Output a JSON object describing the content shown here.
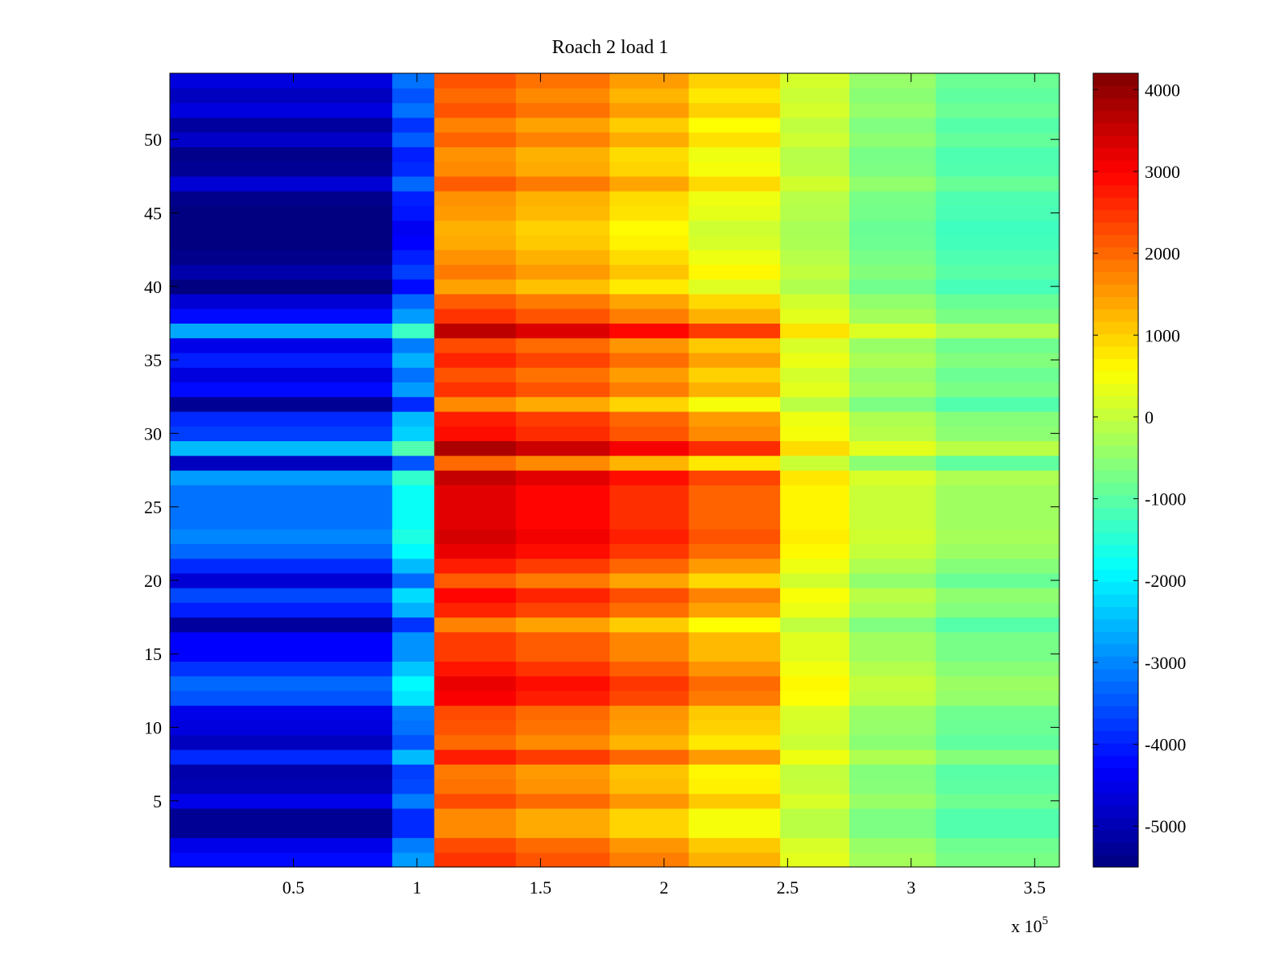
{
  "chart_data": {
    "type": "heatmap",
    "title": "Roach 2 load 1",
    "xlabel": "",
    "ylabel": "",
    "x_axis": {
      "range": [
        0,
        360000
      ],
      "ticks": [
        50000,
        100000,
        150000,
        200000,
        250000,
        300000,
        350000
      ],
      "tick_labels": [
        "0.5",
        "1",
        "1.5",
        "2",
        "2.5",
        "3",
        "3.5"
      ],
      "multiplier_label": "x 10",
      "multiplier_exponent": "5"
    },
    "y_axis": {
      "range": [
        0.5,
        54.5
      ],
      "ticks": [
        5,
        10,
        15,
        20,
        25,
        30,
        35,
        40,
        45,
        50
      ],
      "tick_labels": [
        "5",
        "10",
        "15",
        "20",
        "25",
        "30",
        "35",
        "40",
        "45",
        "50"
      ]
    },
    "colorbar": {
      "colormap": "jet",
      "range": [
        -5500,
        4200
      ],
      "ticks": [
        4000,
        3000,
        2000,
        1000,
        0,
        -1000,
        -2000,
        -3000,
        -4000,
        -5000
      ],
      "tick_labels": [
        "4000",
        "3000",
        "2000",
        "1000",
        "0",
        "-1000",
        "-2000",
        "-3000",
        "-4000",
        "-5000"
      ]
    },
    "x_segments": [
      {
        "x_start": 0,
        "x_end": 90000,
        "value": -4200
      },
      {
        "x_start": 90000,
        "x_end": 107000,
        "value": -2800
      },
      {
        "x_start": 107000,
        "x_end": 140000,
        "value": 2500
      },
      {
        "x_start": 140000,
        "x_end": 178000,
        "value": 2200
      },
      {
        "x_start": 178000,
        "x_end": 210000,
        "value": 1800
      },
      {
        "x_start": 210000,
        "x_end": 247000,
        "value": 1300
      },
      {
        "x_start": 247000,
        "x_end": 275000,
        "value": 300
      },
      {
        "x_start": 275000,
        "x_end": 310000,
        "value": -300
      },
      {
        "x_start": 310000,
        "x_end": 360000,
        "value": -700
      }
    ],
    "rows": [
      {
        "channel": 1,
        "offset": 0
      },
      {
        "channel": 2,
        "offset": -300
      },
      {
        "channel": 3,
        "offset": -1100
      },
      {
        "channel": 4,
        "offset": -1100
      },
      {
        "channel": 5,
        "offset": -300
      },
      {
        "channel": 6,
        "offset": -800
      },
      {
        "channel": 7,
        "offset": -900
      },
      {
        "channel": 8,
        "offset": 300
      },
      {
        "channel": 9,
        "offset": -700
      },
      {
        "channel": 10,
        "offset": -400
      },
      {
        "channel": 11,
        "offset": -300
      },
      {
        "channel": 12,
        "offset": 700
      },
      {
        "channel": 13,
        "offset": 900
      },
      {
        "channel": 14,
        "offset": 400
      },
      {
        "channel": 15,
        "offset": -100
      },
      {
        "channel": 16,
        "offset": -100
      },
      {
        "channel": 17,
        "offset": -1000
      },
      {
        "channel": 18,
        "offset": 200
      },
      {
        "channel": 19,
        "offset": 600
      },
      {
        "channel": 20,
        "offset": -500
      },
      {
        "channel": 21,
        "offset": 300
      },
      {
        "channel": 22,
        "offset": 900
      },
      {
        "channel": 23,
        "offset": 1200
      },
      {
        "channel": 24,
        "offset": 1000
      },
      {
        "channel": 25,
        "offset": 1000
      },
      {
        "channel": 26,
        "offset": 1000
      },
      {
        "channel": 27,
        "offset": 1400
      },
      {
        "channel": 28,
        "offset": -700
      },
      {
        "channel": 29,
        "offset": 1700
      },
      {
        "channel": 30,
        "offset": 500
      },
      {
        "channel": 31,
        "offset": 300
      },
      {
        "channel": 32,
        "offset": -1100
      },
      {
        "channel": 33,
        "offset": 0
      },
      {
        "channel": 34,
        "offset": -400
      },
      {
        "channel": 35,
        "offset": 200
      },
      {
        "channel": 36,
        "offset": -300
      },
      {
        "channel": 37,
        "offset": 1500
      },
      {
        "channel": 38,
        "offset": 0
      },
      {
        "channel": 39,
        "offset": -500
      },
      {
        "channel": 40,
        "offset": -1400
      },
      {
        "channel": 41,
        "offset": -900
      },
      {
        "channel": 42,
        "offset": -1200
      },
      {
        "channel": 43,
        "offset": -1500
      },
      {
        "channel": 44,
        "offset": -1600
      },
      {
        "channel": 45,
        "offset": -1300
      },
      {
        "channel": 46,
        "offset": -1200
      },
      {
        "channel": 47,
        "offset": -500
      },
      {
        "channel": 48,
        "offset": -1100
      },
      {
        "channel": 49,
        "offset": -1200
      },
      {
        "channel": 50,
        "offset": -600
      },
      {
        "channel": 51,
        "offset": -1000
      },
      {
        "channel": 52,
        "offset": -400
      },
      {
        "channel": 53,
        "offset": -700
      },
      {
        "channel": 54,
        "offset": -400
      }
    ]
  }
}
